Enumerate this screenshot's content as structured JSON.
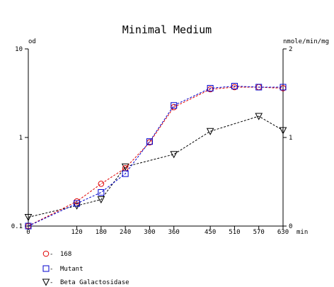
{
  "chart_data": {
    "type": "line",
    "title": "Minimal Medium",
    "left_axis": {
      "label": "od",
      "scale": "log",
      "range": [
        0.1,
        10
      ],
      "ticks": [
        {
          "value": 10,
          "label": "10"
        },
        {
          "value": 1,
          "label": "1"
        },
        {
          "value": 0.1,
          "label": "0.1"
        }
      ]
    },
    "right_axis": {
      "label": "nmole/min/mg",
      "scale": "linear",
      "range": [
        0,
        2
      ],
      "ticks": [
        {
          "value": 2,
          "label": "2"
        },
        {
          "value": 1,
          "label": "1"
        },
        {
          "value": 0,
          "label": "0"
        }
      ]
    },
    "x_axis": {
      "unit": "min",
      "range": [
        0,
        630
      ],
      "ticks": [
        0,
        120,
        180,
        240,
        300,
        360,
        450,
        510,
        570,
        630
      ]
    },
    "series": [
      {
        "name": "168",
        "axis": "left",
        "color": "#e00000",
        "marker": "circle",
        "x": [
          0,
          120,
          180,
          240,
          300,
          360,
          450,
          510,
          570,
          630
        ],
        "y": [
          0.1,
          0.19,
          0.3,
          0.45,
          0.88,
          2.2,
          3.5,
          3.7,
          3.7,
          3.6
        ]
      },
      {
        "name": "Mutant",
        "axis": "left",
        "color": "#0000cc",
        "marker": "square",
        "x": [
          0,
          120,
          180,
          240,
          300,
          360,
          450,
          510,
          570,
          630
        ],
        "y": [
          0.1,
          0.18,
          0.24,
          0.39,
          0.9,
          2.3,
          3.6,
          3.8,
          3.7,
          3.7
        ]
      },
      {
        "name": "Beta Galactosidase",
        "axis": "right",
        "color": "#000000",
        "marker": "triangle-down",
        "x": [
          0,
          120,
          180,
          240,
          300,
          360,
          450,
          510,
          570,
          630
        ],
        "y": [
          0.1,
          0.23,
          0.3,
          0.67,
          null,
          0.81,
          1.07,
          null,
          1.24,
          1.08
        ]
      }
    ],
    "legend": {
      "placement": "bottom-left"
    },
    "grid": false
  }
}
